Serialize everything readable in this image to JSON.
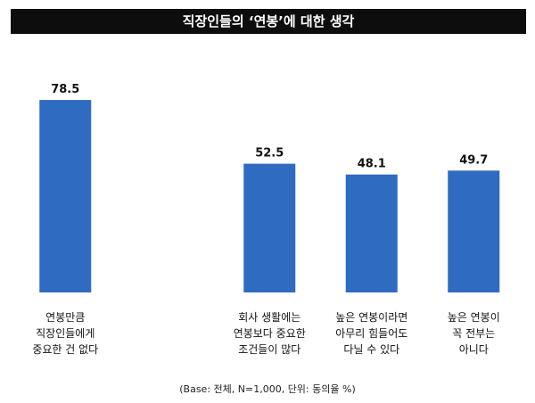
{
  "chart_data": {
    "type": "bar",
    "title": "직장인들의 ‘연봉’에 대한 생각",
    "categories": [
      "연봉만큼\n직장인들에게\n중요한 건 없다",
      null,
      "회사 생활에는\n연봉보다 중요한\n조건들이 많다",
      "높은 연봉이라면\n아무리 힘들어도\n다닐 수 있다",
      "높은 연봉이\n꼭 전부는\n아니다"
    ],
    "values": [
      78.5,
      null,
      52.5,
      48.1,
      49.7
    ],
    "color": "#2f6bc0",
    "note": "(Base: 전체, N=1,000, 단위: 동의율 %)"
  }
}
